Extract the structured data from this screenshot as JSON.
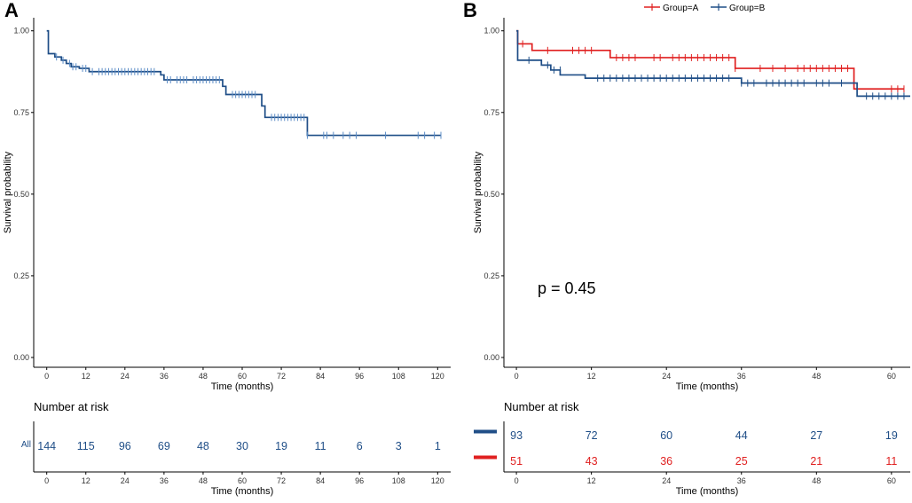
{
  "colors": {
    "all": "#1f4e87",
    "all_censor": "#5b8cc6",
    "group_a": "#e02020",
    "group_b": "#1f4e87",
    "axis": "#000000",
    "tick_text": "#333333"
  },
  "panels": {
    "a_label": "A",
    "b_label": "B"
  },
  "legend": {
    "group_a": "Group=A",
    "group_b": "Group=B"
  },
  "pvalue": "p = 0.45",
  "chart_data": [
    {
      "id": "A",
      "type": "line",
      "step": true,
      "title": "",
      "xlabel": "Time (months)",
      "ylabel": "Survival probability",
      "xlim": [
        -4,
        124
      ],
      "ylim": [
        -0.03,
        1.04
      ],
      "xticks": [
        0,
        12,
        24,
        36,
        48,
        60,
        72,
        84,
        96,
        108,
        120
      ],
      "yticks": [
        0.0,
        0.25,
        0.5,
        0.75,
        1.0
      ],
      "ytick_labels": [
        "0.00",
        "0.25",
        "0.50",
        "0.75",
        "1.00"
      ],
      "series": [
        {
          "name": "All",
          "color_key": "all",
          "x": [
            0,
            0.5,
            2.5,
            4.5,
            6,
            7.5,
            10,
            13,
            35,
            36,
            54,
            55,
            66,
            67,
            80
          ],
          "values": [
            1.0,
            0.93,
            0.92,
            0.91,
            0.9,
            0.89,
            0.885,
            0.875,
            0.865,
            0.85,
            0.83,
            0.805,
            0.77,
            0.735,
            0.68
          ],
          "end_x": 121,
          "censors": [
            [
              3,
              0.92
            ],
            [
              5,
              0.91
            ],
            [
              7,
              0.9
            ],
            [
              8,
              0.89
            ],
            [
              9,
              0.89
            ],
            [
              11,
              0.885
            ],
            [
              12,
              0.885
            ],
            [
              14,
              0.875
            ],
            [
              16,
              0.875
            ],
            [
              17,
              0.875
            ],
            [
              18,
              0.875
            ],
            [
              19,
              0.875
            ],
            [
              20,
              0.875
            ],
            [
              21,
              0.875
            ],
            [
              22,
              0.875
            ],
            [
              23,
              0.875
            ],
            [
              24,
              0.875
            ],
            [
              25,
              0.875
            ],
            [
              26,
              0.875
            ],
            [
              27,
              0.875
            ],
            [
              28,
              0.875
            ],
            [
              29,
              0.875
            ],
            [
              30,
              0.875
            ],
            [
              31,
              0.875
            ],
            [
              32,
              0.875
            ],
            [
              33,
              0.875
            ],
            [
              37,
              0.85
            ],
            [
              38,
              0.85
            ],
            [
              40,
              0.85
            ],
            [
              41,
              0.85
            ],
            [
              42,
              0.85
            ],
            [
              43,
              0.85
            ],
            [
              45,
              0.85
            ],
            [
              46,
              0.85
            ],
            [
              47,
              0.85
            ],
            [
              48,
              0.85
            ],
            [
              49,
              0.85
            ],
            [
              50,
              0.85
            ],
            [
              51,
              0.85
            ],
            [
              52,
              0.85
            ],
            [
              53,
              0.85
            ],
            [
              57,
              0.805
            ],
            [
              58,
              0.805
            ],
            [
              59,
              0.805
            ],
            [
              60,
              0.805
            ],
            [
              61,
              0.805
            ],
            [
              62,
              0.805
            ],
            [
              63,
              0.805
            ],
            [
              64,
              0.805
            ],
            [
              69,
              0.735
            ],
            [
              70,
              0.735
            ],
            [
              71,
              0.735
            ],
            [
              72,
              0.735
            ],
            [
              73,
              0.735
            ],
            [
              74,
              0.735
            ],
            [
              75,
              0.735
            ],
            [
              76,
              0.735
            ],
            [
              77,
              0.735
            ],
            [
              78,
              0.735
            ],
            [
              79,
              0.735
            ],
            [
              80,
              0.68
            ],
            [
              85,
              0.68
            ],
            [
              86,
              0.68
            ],
            [
              88,
              0.68
            ],
            [
              91,
              0.68
            ],
            [
              93,
              0.68
            ],
            [
              95,
              0.68
            ],
            [
              104,
              0.68
            ],
            [
              114,
              0.68
            ],
            [
              116,
              0.68
            ],
            [
              119,
              0.68
            ],
            [
              121,
              0.68
            ]
          ]
        }
      ]
    },
    {
      "id": "B",
      "type": "line",
      "step": true,
      "title": "",
      "xlabel": "Time (months)",
      "ylabel": "Survival probability",
      "xlim": [
        -2,
        63
      ],
      "ylim": [
        -0.03,
        1.04
      ],
      "xticks": [
        0,
        12,
        24,
        36,
        48,
        60
      ],
      "yticks": [
        0.0,
        0.25,
        0.5,
        0.75,
        1.0
      ],
      "ytick_labels": [
        "0.00",
        "0.25",
        "0.50",
        "0.75",
        "1.00"
      ],
      "legend_position": "top",
      "series": [
        {
          "name": "Group=A",
          "color_key": "group_a",
          "x": [
            0,
            0.2,
            2.5,
            15,
            35,
            54
          ],
          "values": [
            1.0,
            0.96,
            0.94,
            0.918,
            0.885,
            0.822
          ],
          "end_x": 62,
          "censors": [
            [
              1,
              0.96
            ],
            [
              5,
              0.94
            ],
            [
              9,
              0.94
            ],
            [
              10,
              0.94
            ],
            [
              11,
              0.94
            ],
            [
              12,
              0.94
            ],
            [
              16,
              0.918
            ],
            [
              17,
              0.918
            ],
            [
              18,
              0.918
            ],
            [
              19,
              0.918
            ],
            [
              22,
              0.918
            ],
            [
              23,
              0.918
            ],
            [
              25,
              0.918
            ],
            [
              26,
              0.918
            ],
            [
              27,
              0.918
            ],
            [
              28,
              0.918
            ],
            [
              29,
              0.918
            ],
            [
              30,
              0.918
            ],
            [
              31,
              0.918
            ],
            [
              32,
              0.918
            ],
            [
              33,
              0.918
            ],
            [
              34,
              0.918
            ],
            [
              35,
              0.885
            ],
            [
              39,
              0.885
            ],
            [
              41,
              0.885
            ],
            [
              43,
              0.885
            ],
            [
              45,
              0.885
            ],
            [
              46,
              0.885
            ],
            [
              47,
              0.885
            ],
            [
              48,
              0.885
            ],
            [
              49,
              0.885
            ],
            [
              50,
              0.885
            ],
            [
              51,
              0.885
            ],
            [
              52,
              0.885
            ],
            [
              53,
              0.885
            ],
            [
              60,
              0.822
            ],
            [
              61,
              0.822
            ],
            [
              62,
              0.822
            ]
          ]
        },
        {
          "name": "Group=B",
          "color_key": "group_b",
          "x": [
            0,
            0.2,
            4,
            5.5,
            7,
            11,
            36,
            54.5
          ],
          "values": [
            1.0,
            0.91,
            0.895,
            0.88,
            0.865,
            0.855,
            0.84,
            0.8
          ],
          "end_x": 63,
          "censors": [
            [
              2,
              0.91
            ],
            [
              5,
              0.895
            ],
            [
              6,
              0.88
            ],
            [
              7,
              0.88
            ],
            [
              13,
              0.855
            ],
            [
              14,
              0.855
            ],
            [
              15,
              0.855
            ],
            [
              16,
              0.855
            ],
            [
              17,
              0.855
            ],
            [
              18,
              0.855
            ],
            [
              19,
              0.855
            ],
            [
              20,
              0.855
            ],
            [
              21,
              0.855
            ],
            [
              22,
              0.855
            ],
            [
              23,
              0.855
            ],
            [
              24,
              0.855
            ],
            [
              25,
              0.855
            ],
            [
              26,
              0.855
            ],
            [
              27,
              0.855
            ],
            [
              28,
              0.855
            ],
            [
              29,
              0.855
            ],
            [
              30,
              0.855
            ],
            [
              31,
              0.855
            ],
            [
              32,
              0.855
            ],
            [
              33,
              0.855
            ],
            [
              34,
              0.855
            ],
            [
              36,
              0.84
            ],
            [
              37,
              0.84
            ],
            [
              38,
              0.84
            ],
            [
              40,
              0.84
            ],
            [
              41,
              0.84
            ],
            [
              42,
              0.84
            ],
            [
              43,
              0.84
            ],
            [
              44,
              0.84
            ],
            [
              45,
              0.84
            ],
            [
              46,
              0.84
            ],
            [
              48,
              0.84
            ],
            [
              49,
              0.84
            ],
            [
              50,
              0.84
            ],
            [
              52,
              0.84
            ],
            [
              56,
              0.8
            ],
            [
              57,
              0.8
            ],
            [
              58,
              0.8
            ],
            [
              59,
              0.8
            ],
            [
              60,
              0.8
            ],
            [
              61,
              0.8
            ],
            [
              62,
              0.8
            ]
          ]
        }
      ]
    }
  ],
  "risk_tables": [
    {
      "id": "A",
      "title": "Number at risk",
      "xlabel": "Time (months)",
      "xlim": [
        -4,
        124
      ],
      "xticks": [
        0,
        12,
        24,
        36,
        48,
        60,
        72,
        84,
        96,
        108,
        120
      ],
      "rows": [
        {
          "label": "All",
          "color_key": "all",
          "values": [
            144,
            115,
            96,
            69,
            48,
            30,
            19,
            11,
            6,
            3,
            1
          ]
        }
      ]
    },
    {
      "id": "B",
      "title": "Number at risk",
      "xlabel": "Time (months)",
      "xlim": [
        -2,
        63
      ],
      "xticks": [
        0,
        12,
        24,
        36,
        48,
        60
      ],
      "rows": [
        {
          "label": "",
          "color_key": "group_b",
          "values": [
            93,
            72,
            60,
            44,
            27,
            19
          ]
        },
        {
          "label": "",
          "color_key": "group_a",
          "values": [
            51,
            43,
            36,
            25,
            21,
            11
          ]
        }
      ]
    }
  ]
}
